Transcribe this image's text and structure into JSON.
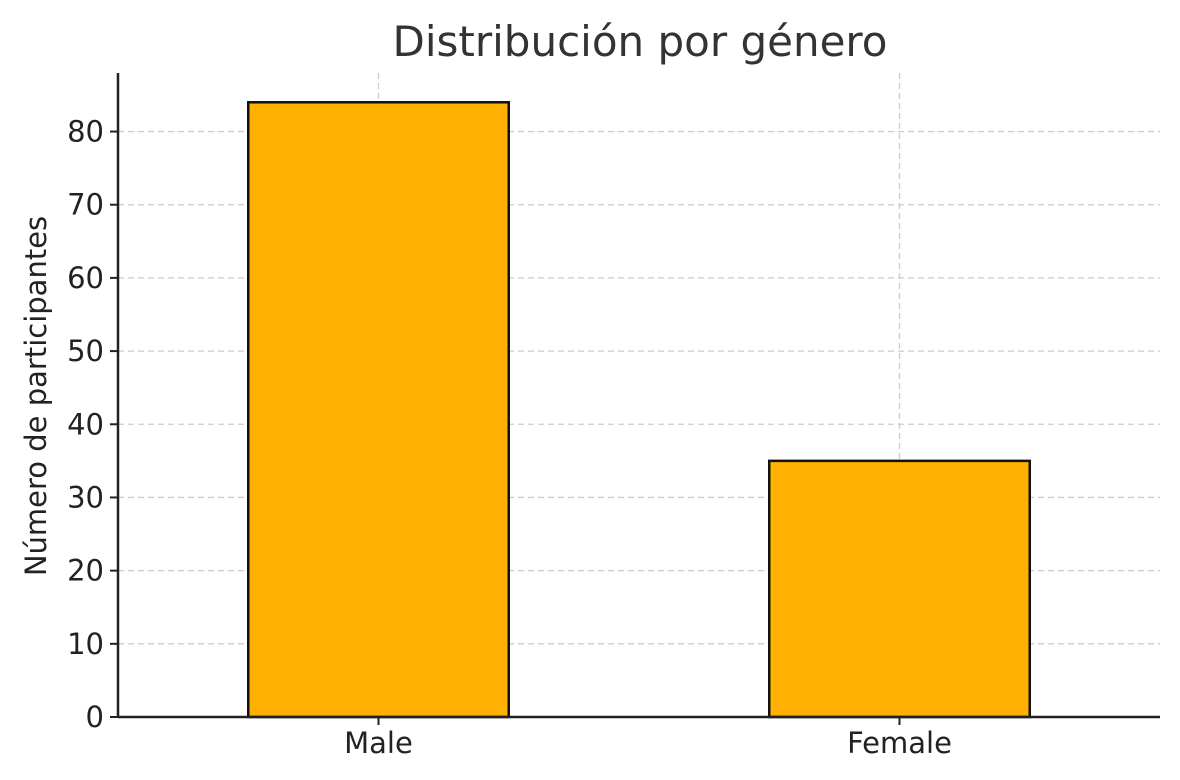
{
  "chart_data": {
    "type": "bar",
    "title": "Distribución por género",
    "xlabel": "",
    "ylabel": "Número de participantes",
    "categories": [
      "Male",
      "Female"
    ],
    "values": [
      84,
      35
    ],
    "ylim": [
      0,
      88
    ],
    "yticks": [
      0,
      10,
      20,
      30,
      40,
      50,
      60,
      70,
      80
    ],
    "grid": true,
    "legend": "none",
    "colors": {
      "bar_fill": "#FFB000",
      "bar_edge": "#111111",
      "grid": "#cccccc",
      "axis": "#222222"
    }
  }
}
